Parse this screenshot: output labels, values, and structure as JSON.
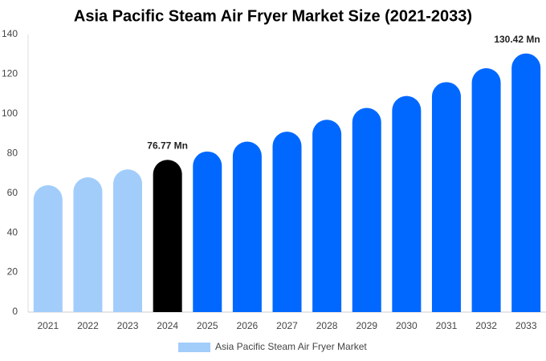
{
  "chart_data": {
    "type": "bar",
    "title": "Asia Pacific Steam Air Fryer Market Size (2021-2033)",
    "categories": [
      "2021",
      "2022",
      "2023",
      "2024",
      "2025",
      "2026",
      "2027",
      "2028",
      "2029",
      "2030",
      "2031",
      "2032",
      "2033"
    ],
    "series": [
      {
        "name": "Asia Pacific Steam Air Fryer Market",
        "color": "#a2cdfb",
        "values": [
          64,
          68,
          72,
          76.77,
          81,
          86,
          91,
          97,
          103,
          109,
          116,
          123,
          130.42
        ],
        "value_labels": [
          null,
          null,
          null,
          "76.77 Mn",
          null,
          null,
          null,
          null,
          null,
          null,
          null,
          null,
          "130.42 Mn"
        ],
        "colors": [
          "#a2cdfb",
          "#a2cdfb",
          "#a2cdfb",
          "#000000",
          "#0068ff",
          "#0068ff",
          "#0068ff",
          "#0068ff",
          "#0068ff",
          "#0068ff",
          "#0068ff",
          "#0068ff",
          "#0068ff"
        ]
      }
    ],
    "ylim": [
      0,
      140
    ],
    "yticks": [
      0,
      20,
      40,
      60,
      80,
      100,
      120,
      140
    ],
    "grid": false
  }
}
